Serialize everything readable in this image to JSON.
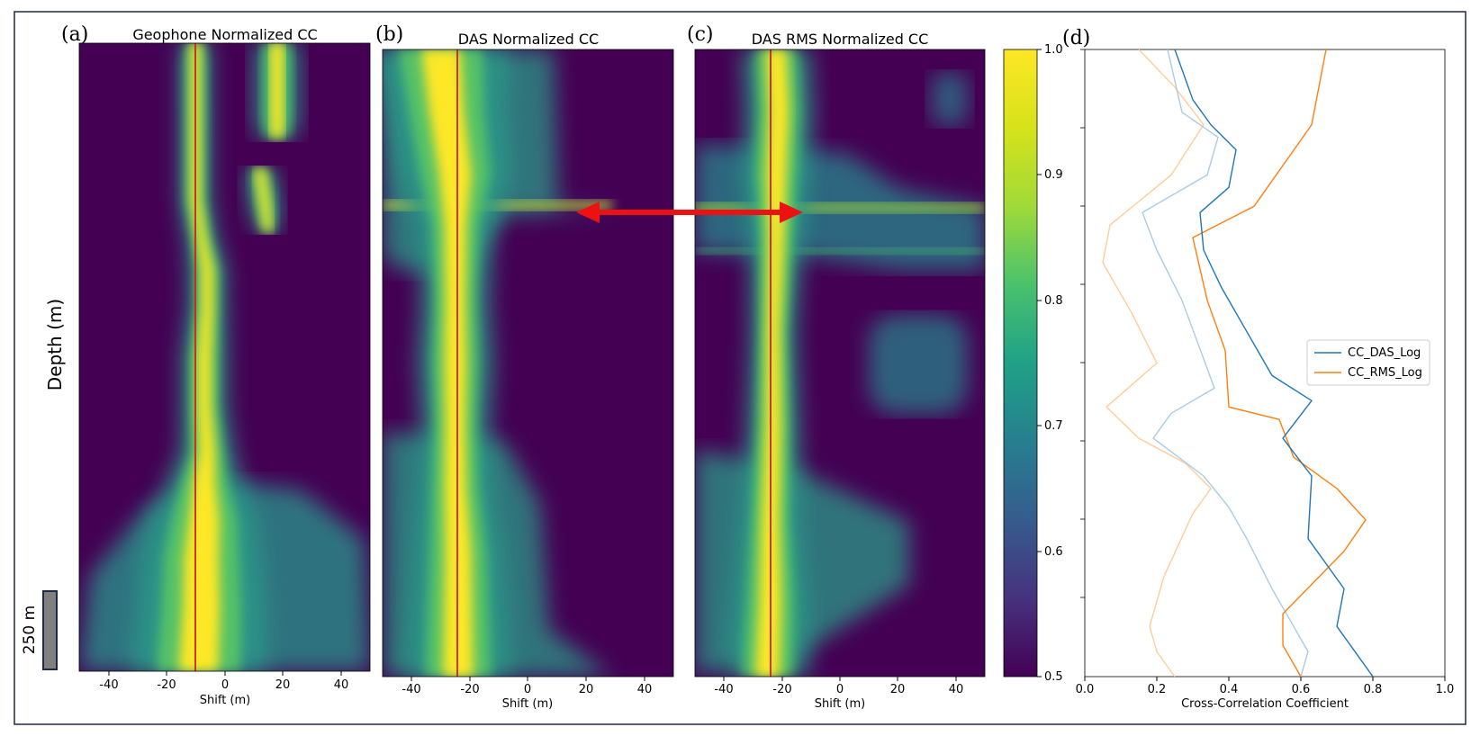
{
  "figure": {
    "depth_label": "Depth (m)",
    "scale_bar_label": "250 m",
    "colors": {
      "frame": "#1f2a44",
      "arrow": "#ee1111",
      "guide": "#cc2222",
      "scale_bar_fill": "#808080"
    }
  },
  "chart_data": [
    {
      "type": "heatmap",
      "panel_label": "(a)",
      "title": "Geophone Normalized CC",
      "xlabel": "Shift (m)",
      "xlim": [
        -50,
        50
      ],
      "xticks": [
        -40,
        -20,
        0,
        20,
        40
      ],
      "reference_shift": -10,
      "ridges": [
        {
          "x": [
            -10,
            -10,
            -10,
            -10,
            -8,
            -6,
            -6,
            -7,
            -7,
            -6,
            -7,
            -7,
            -8,
            -8,
            -9
          ],
          "depth": [
            0,
            0.08,
            0.18,
            0.25,
            0.31,
            0.36,
            0.42,
            0.5,
            0.58,
            0.65,
            0.7,
            0.76,
            0.82,
            0.9,
            1.0
          ],
          "width": [
            4,
            4,
            4,
            4,
            4,
            5,
            5,
            6,
            6,
            7,
            10,
            14,
            16,
            17,
            18
          ]
        },
        {
          "x": [
            18,
            18,
            18,
            18
          ],
          "depth": [
            0,
            0.07,
            0.12,
            0.15
          ],
          "width": [
            6,
            6,
            6,
            5
          ]
        },
        {
          "x": [
            12,
            14,
            15
          ],
          "depth": [
            0.2,
            0.26,
            0.3
          ],
          "width": [
            4,
            4,
            3
          ]
        }
      ]
    },
    {
      "type": "heatmap",
      "panel_label": "(b)",
      "title": "DAS Normalized CC",
      "xlabel": "Shift (m)",
      "xlim": [
        -50,
        50
      ],
      "xticks": [
        -40,
        -20,
        0,
        20,
        40
      ],
      "reference_shift": -24,
      "ridges": [
        {
          "x": [
            -30,
            -28,
            -25,
            -25,
            -25,
            -25,
            -25,
            -25,
            -24,
            -24,
            -24
          ],
          "depth": [
            0,
            0.1,
            0.2,
            0.28,
            0.4,
            0.5,
            0.6,
            0.7,
            0.8,
            0.9,
            1.0
          ],
          "width": [
            18,
            16,
            15,
            10,
            9,
            10,
            9,
            10,
            12,
            13,
            14
          ]
        },
        {
          "x": [
            -5
          ],
          "depth": [
            0.11
          ],
          "width": [
            7
          ]
        }
      ]
    },
    {
      "type": "heatmap",
      "panel_label": "(c)",
      "title": "DAS RMS Normalized CC",
      "xlabel": "Shift (m)",
      "xlim": [
        -50,
        50
      ],
      "xticks": [
        -40,
        -20,
        0,
        20,
        40
      ],
      "reference_shift": -23,
      "ridges": [
        {
          "x": [
            -22,
            -21,
            -22,
            -22,
            -23,
            -23,
            -24,
            -24,
            -25
          ],
          "depth": [
            0,
            0.1,
            0.2,
            0.3,
            0.45,
            0.6,
            0.75,
            0.88,
            1.0
          ],
          "width": [
            9,
            9,
            9,
            7,
            6,
            7,
            8,
            10,
            11
          ]
        },
        {
          "x": [
            40
          ],
          "depth": [
            0.29
          ],
          "width": [
            7
          ]
        }
      ]
    },
    {
      "type": "line",
      "panel_label": "(d)",
      "xlabel": "Cross-Correlation Coefficient",
      "xlim": [
        0,
        1
      ],
      "xticks": [
        "0.0",
        "0.2",
        "0.4",
        "0.6",
        "0.8",
        "1.0"
      ],
      "legend_position": "center-right",
      "series": [
        {
          "name": "CC_DAS_Log",
          "color": "#1f77b4",
          "x": [
            0.25,
            0.3,
            0.35,
            0.42,
            0.4,
            0.32,
            0.33,
            0.38,
            0.45,
            0.52,
            0.63,
            0.55,
            0.63,
            0.62,
            0.72,
            0.7,
            0.8
          ],
          "depth": [
            0,
            0.08,
            0.12,
            0.16,
            0.22,
            0.26,
            0.32,
            0.38,
            0.45,
            0.52,
            0.56,
            0.62,
            0.68,
            0.78,
            0.86,
            0.92,
            1.0
          ]
        },
        {
          "name": "CC_RMS_Log",
          "color": "#ff7f0e",
          "x": [
            0.67,
            0.63,
            0.47,
            0.3,
            0.34,
            0.39,
            0.4,
            0.54,
            0.58,
            0.7,
            0.78,
            0.72,
            0.55,
            0.55,
            0.6
          ],
          "depth": [
            0,
            0.12,
            0.25,
            0.3,
            0.4,
            0.48,
            0.57,
            0.59,
            0.65,
            0.7,
            0.75,
            0.8,
            0.9,
            0.95,
            1.0
          ]
        },
        {
          "color": "#aacbe6",
          "x": [
            0.23,
            0.27,
            0.37,
            0.34,
            0.16,
            0.2,
            0.27,
            0.36,
            0.24,
            0.19,
            0.33,
            0.4,
            0.45,
            0.52,
            0.58,
            0.62,
            0.6
          ],
          "depth": [
            0,
            0.1,
            0.14,
            0.2,
            0.26,
            0.32,
            0.4,
            0.54,
            0.58,
            0.62,
            0.68,
            0.73,
            0.78,
            0.86,
            0.92,
            0.96,
            1.0
          ]
        },
        {
          "color": "#ffcc99",
          "x": [
            0.15,
            0.25,
            0.33,
            0.24,
            0.07,
            0.05,
            0.13,
            0.2,
            0.06,
            0.15,
            0.28,
            0.35,
            0.3,
            0.22,
            0.18,
            0.2,
            0.25
          ],
          "depth": [
            0,
            0.06,
            0.12,
            0.2,
            0.28,
            0.34,
            0.42,
            0.5,
            0.57,
            0.62,
            0.66,
            0.7,
            0.74,
            0.84,
            0.92,
            0.96,
            1.0
          ]
        }
      ]
    },
    {
      "type": "colorbar",
      "vmin": 0.5,
      "vmax": 1.0,
      "ticks": [
        "0.5",
        "0.6",
        "0.7",
        "0.8",
        "0.9",
        "1.0"
      ],
      "colormap": "viridis"
    }
  ]
}
